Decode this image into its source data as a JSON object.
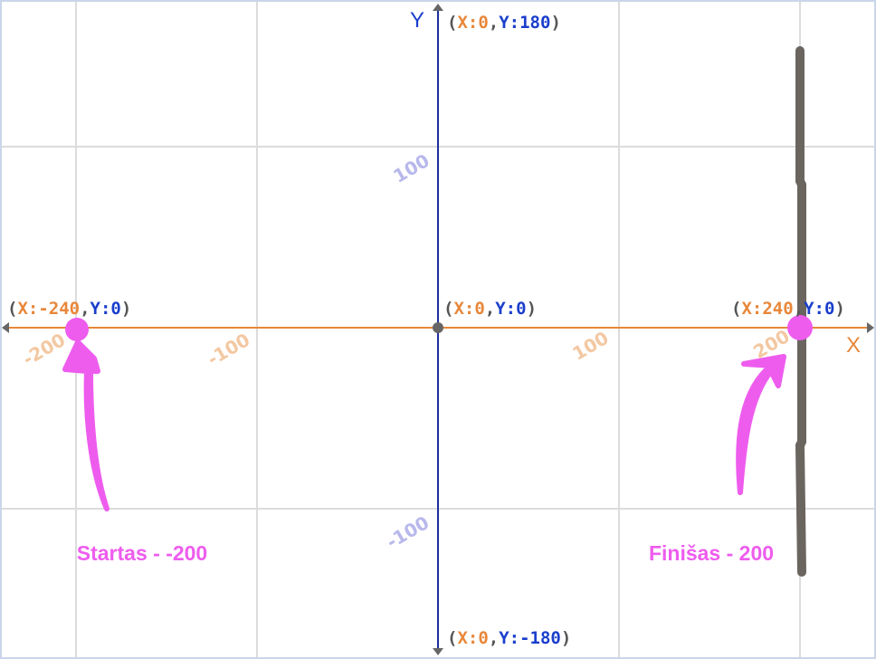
{
  "axes": {
    "x_name": "X",
    "y_name": "Y",
    "x_ticks": [
      "-200",
      "-100",
      "100",
      "200"
    ],
    "y_ticks": [
      "100",
      "-100"
    ]
  },
  "coordinate_labels": [
    {
      "segments": [
        "(",
        "X:0",
        ",",
        "Y:180",
        ")"
      ]
    },
    {
      "segments": [
        "(",
        "X:-240",
        ",",
        "Y:0",
        ")"
      ]
    },
    {
      "segments": [
        "(",
        "X:0",
        ",",
        "Y:0",
        ")"
      ]
    },
    {
      "segments": [
        "(",
        "X:240",
        ",",
        "Y:0",
        ")"
      ]
    },
    {
      "segments": [
        "(",
        "X:0",
        ",",
        "Y:-180",
        ")"
      ]
    }
  ],
  "annotations": {
    "start": "Startas - -200",
    "finish": "Finišas - 200"
  }
}
